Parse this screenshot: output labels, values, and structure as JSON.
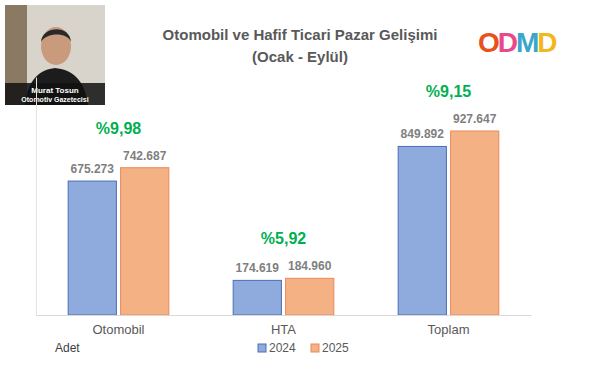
{
  "chart_data": {
    "type": "bar",
    "title": "Otomobil ve Hafif Ticari Pazar Gelişimi",
    "subtitle": "(Ocak - Eylül)",
    "y_label": "Adet",
    "categories": [
      "Otomobil",
      "HTA",
      "Toplam"
    ],
    "series": [
      {
        "name": "2024",
        "color": "#8faadc",
        "values": [
          675273,
          174619,
          849892
        ],
        "value_labels": [
          "675.273",
          "174.619",
          "849.892"
        ]
      },
      {
        "name": "2025",
        "color": "#f4b183",
        "values": [
          742687,
          184960,
          927647
        ],
        "value_labels": [
          "742.687",
          "184.960",
          "927.647"
        ]
      }
    ],
    "annotations": [
      "%9,98",
      "%5,92",
      "%9,15"
    ],
    "ylim": [
      0,
      1200000
    ],
    "yticks": [],
    "tick_labels": "x",
    "data_labels": true,
    "grid": false,
    "legend": "bottom",
    "author": {
      "name": "Murat Tosun",
      "role": "Otomotiv Gazetecisi"
    },
    "logo": "ODMD"
  }
}
